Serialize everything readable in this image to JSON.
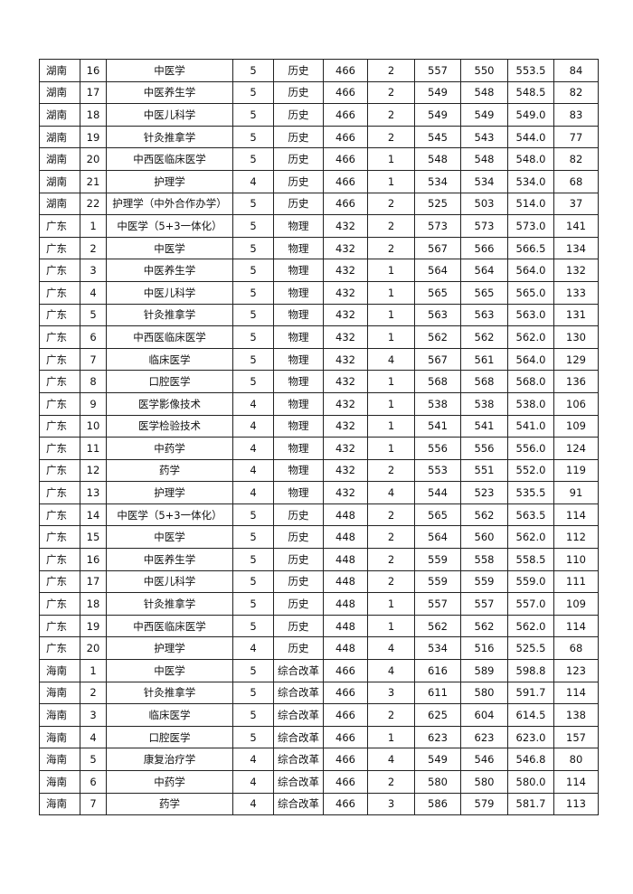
{
  "table": {
    "rows": [
      [
        "湖南",
        "16",
        "中医学",
        "5",
        "历史",
        "466",
        "2",
        "557",
        "550",
        "553.5",
        "84"
      ],
      [
        "湖南",
        "17",
        "中医养生学",
        "5",
        "历史",
        "466",
        "2",
        "549",
        "548",
        "548.5",
        "82"
      ],
      [
        "湖南",
        "18",
        "中医儿科学",
        "5",
        "历史",
        "466",
        "2",
        "549",
        "549",
        "549.0",
        "83"
      ],
      [
        "湖南",
        "19",
        "针灸推拿学",
        "5",
        "历史",
        "466",
        "2",
        "545",
        "543",
        "544.0",
        "77"
      ],
      [
        "湖南",
        "20",
        "中西医临床医学",
        "5",
        "历史",
        "466",
        "1",
        "548",
        "548",
        "548.0",
        "82"
      ],
      [
        "湖南",
        "21",
        "护理学",
        "4",
        "历史",
        "466",
        "1",
        "534",
        "534",
        "534.0",
        "68"
      ],
      [
        "湖南",
        "22",
        "护理学（中外合作办学）",
        "5",
        "历史",
        "466",
        "2",
        "525",
        "503",
        "514.0",
        "37"
      ],
      [
        "广东",
        "1",
        "中医学（5+3一体化）",
        "5",
        "物理",
        "432",
        "2",
        "573",
        "573",
        "573.0",
        "141"
      ],
      [
        "广东",
        "2",
        "中医学",
        "5",
        "物理",
        "432",
        "2",
        "567",
        "566",
        "566.5",
        "134"
      ],
      [
        "广东",
        "3",
        "中医养生学",
        "5",
        "物理",
        "432",
        "1",
        "564",
        "564",
        "564.0",
        "132"
      ],
      [
        "广东",
        "4",
        "中医儿科学",
        "5",
        "物理",
        "432",
        "1",
        "565",
        "565",
        "565.0",
        "133"
      ],
      [
        "广东",
        "5",
        "针灸推拿学",
        "5",
        "物理",
        "432",
        "1",
        "563",
        "563",
        "563.0",
        "131"
      ],
      [
        "广东",
        "6",
        "中西医临床医学",
        "5",
        "物理",
        "432",
        "1",
        "562",
        "562",
        "562.0",
        "130"
      ],
      [
        "广东",
        "7",
        "临床医学",
        "5",
        "物理",
        "432",
        "4",
        "567",
        "561",
        "564.0",
        "129"
      ],
      [
        "广东",
        "8",
        "口腔医学",
        "5",
        "物理",
        "432",
        "1",
        "568",
        "568",
        "568.0",
        "136"
      ],
      [
        "广东",
        "9",
        "医学影像技术",
        "4",
        "物理",
        "432",
        "1",
        "538",
        "538",
        "538.0",
        "106"
      ],
      [
        "广东",
        "10",
        "医学检验技术",
        "4",
        "物理",
        "432",
        "1",
        "541",
        "541",
        "541.0",
        "109"
      ],
      [
        "广东",
        "11",
        "中药学",
        "4",
        "物理",
        "432",
        "1",
        "556",
        "556",
        "556.0",
        "124"
      ],
      [
        "广东",
        "12",
        "药学",
        "4",
        "物理",
        "432",
        "2",
        "553",
        "551",
        "552.0",
        "119"
      ],
      [
        "广东",
        "13",
        "护理学",
        "4",
        "物理",
        "432",
        "4",
        "544",
        "523",
        "535.5",
        "91"
      ],
      [
        "广东",
        "14",
        "中医学（5+3一体化）",
        "5",
        "历史",
        "448",
        "2",
        "565",
        "562",
        "563.5",
        "114"
      ],
      [
        "广东",
        "15",
        "中医学",
        "5",
        "历史",
        "448",
        "2",
        "564",
        "560",
        "562.0",
        "112"
      ],
      [
        "广东",
        "16",
        "中医养生学",
        "5",
        "历史",
        "448",
        "2",
        "559",
        "558",
        "558.5",
        "110"
      ],
      [
        "广东",
        "17",
        "中医儿科学",
        "5",
        "历史",
        "448",
        "2",
        "559",
        "559",
        "559.0",
        "111"
      ],
      [
        "广东",
        "18",
        "针灸推拿学",
        "5",
        "历史",
        "448",
        "1",
        "557",
        "557",
        "557.0",
        "109"
      ],
      [
        "广东",
        "19",
        "中西医临床医学",
        "5",
        "历史",
        "448",
        "1",
        "562",
        "562",
        "562.0",
        "114"
      ],
      [
        "广东",
        "20",
        "护理学",
        "4",
        "历史",
        "448",
        "4",
        "534",
        "516",
        "525.5",
        "68"
      ],
      [
        "海南",
        "1",
        "中医学",
        "5",
        "综合改革",
        "466",
        "4",
        "616",
        "589",
        "598.8",
        "123"
      ],
      [
        "海南",
        "2",
        "针灸推拿学",
        "5",
        "综合改革",
        "466",
        "3",
        "611",
        "580",
        "591.7",
        "114"
      ],
      [
        "海南",
        "3",
        "临床医学",
        "5",
        "综合改革",
        "466",
        "2",
        "625",
        "604",
        "614.5",
        "138"
      ],
      [
        "海南",
        "4",
        "口腔医学",
        "5",
        "综合改革",
        "466",
        "1",
        "623",
        "623",
        "623.0",
        "157"
      ],
      [
        "海南",
        "5",
        "康复治疗学",
        "4",
        "综合改革",
        "466",
        "4",
        "549",
        "546",
        "546.8",
        "80"
      ],
      [
        "海南",
        "6",
        "中药学",
        "4",
        "综合改革",
        "466",
        "2",
        "580",
        "580",
        "580.0",
        "114"
      ],
      [
        "海南",
        "7",
        "药学",
        "4",
        "综合改革",
        "466",
        "3",
        "586",
        "579",
        "581.7",
        "113"
      ]
    ]
  }
}
